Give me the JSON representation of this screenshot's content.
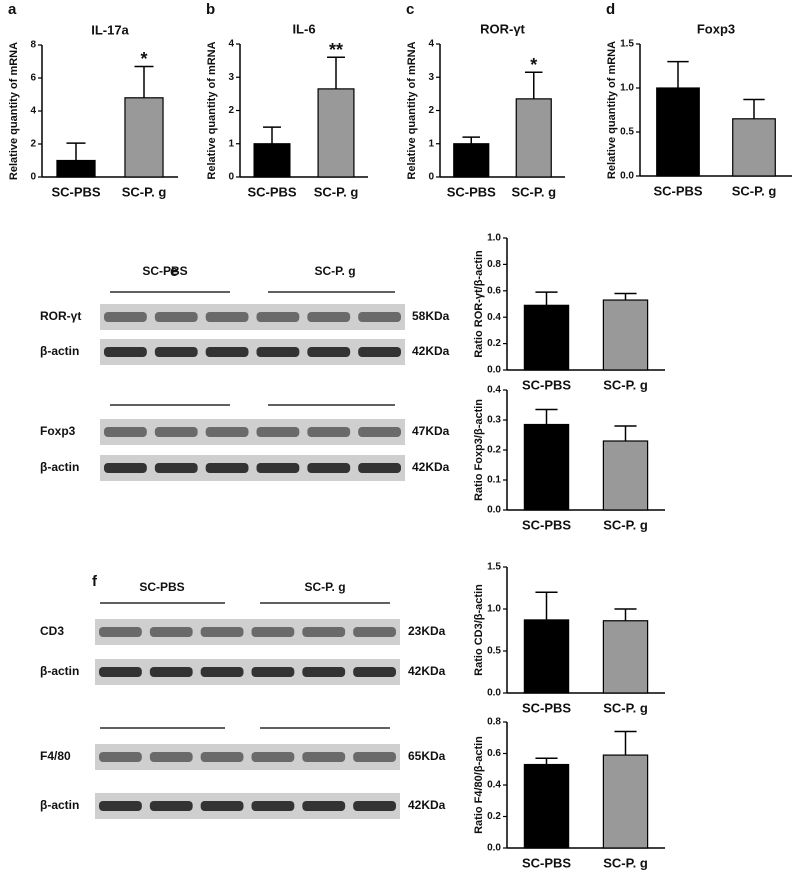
{
  "chart_data": [
    {
      "type": "bar",
      "panel": "a",
      "title": "IL-17a",
      "ylabel": "Relative quantity of mRNA",
      "categories": [
        "SC-PBS",
        "SC-P. g"
      ],
      "values": [
        1.0,
        4.8
      ],
      "errors": [
        1.05,
        1.9
      ],
      "annotations": [
        null,
        "*"
      ],
      "colors": [
        "#000000",
        "#999999"
      ],
      "ylim": [
        0,
        8
      ],
      "yticks": [
        0,
        2,
        4,
        6,
        8
      ]
    },
    {
      "type": "bar",
      "panel": "b",
      "title": "IL-6",
      "ylabel": "Relative quantity of mRNA",
      "categories": [
        "SC-PBS",
        "SC-P. g"
      ],
      "values": [
        1.0,
        2.65
      ],
      "errors": [
        0.5,
        0.95
      ],
      "annotations": [
        null,
        "**"
      ],
      "colors": [
        "#000000",
        "#999999"
      ],
      "ylim": [
        0,
        4
      ],
      "yticks": [
        0,
        1,
        2,
        3,
        4
      ]
    },
    {
      "type": "bar",
      "panel": "c",
      "title": "ROR-γt",
      "ylabel": "Relative quantity of mRNA",
      "categories": [
        "SC-PBS",
        "SC-P. g"
      ],
      "values": [
        1.0,
        2.35
      ],
      "errors": [
        0.2,
        0.8
      ],
      "annotations": [
        null,
        "*"
      ],
      "colors": [
        "#000000",
        "#999999"
      ],
      "ylim": [
        0,
        4
      ],
      "yticks": [
        0,
        1,
        2,
        3,
        4
      ]
    },
    {
      "type": "bar",
      "panel": "d",
      "title": "Foxp3",
      "ylabel": "Relative quantity of mRNA",
      "categories": [
        "SC-PBS",
        "SC-P. g"
      ],
      "values": [
        1.0,
        0.65
      ],
      "errors": [
        0.3,
        0.22
      ],
      "colors": [
        "#000000",
        "#999999"
      ],
      "ylim": [
        0,
        1.5
      ],
      "yticks": [
        {
          "value": 0,
          "label": "0.0"
        },
        0.5,
        {
          "value": 1,
          "label": "1.0"
        },
        1.5
      ]
    },
    {
      "type": "bar",
      "ylabel": "Ratio ROR-γt/β-actin",
      "categories": [
        "SC-PBS",
        "SC-P. g"
      ],
      "values": [
        0.49,
        0.53
      ],
      "errors": [
        0.1,
        0.05
      ],
      "colors": [
        "#000000",
        "#999999"
      ],
      "ylim": [
        0,
        1
      ],
      "yticks": [
        {
          "value": 0,
          "label": "0.0"
        },
        0.2,
        0.4,
        0.6,
        0.8,
        {
          "value": 1,
          "label": "1.0"
        }
      ]
    },
    {
      "type": "bar",
      "ylabel": "Ratio Foxp3/β-actin",
      "categories": [
        "SC-PBS",
        "SC-P. g"
      ],
      "values": [
        0.285,
        0.23
      ],
      "errors": [
        0.05,
        0.05
      ],
      "colors": [
        "#000000",
        "#999999"
      ],
      "ylim": [
        0,
        0.4
      ],
      "yticks": [
        {
          "value": 0,
          "label": "0.0"
        },
        0.1,
        0.2,
        0.3,
        0.4
      ]
    },
    {
      "type": "bar",
      "ylabel": "Ratio CD3/β-actin",
      "categories": [
        "SC-PBS",
        "SC-P. g"
      ],
      "values": [
        0.87,
        0.86
      ],
      "errors": [
        0.33,
        0.14
      ],
      "colors": [
        "#000000",
        "#999999"
      ],
      "ylim": [
        0,
        1.5
      ],
      "yticks": [
        {
          "value": 0,
          "label": "0.0"
        },
        0.5,
        {
          "value": 1,
          "label": "1.0"
        },
        1.5
      ]
    },
    {
      "type": "bar",
      "ylabel": "Ratio F4/80/β-actin",
      "categories": [
        "SC-PBS",
        "SC-P. g"
      ],
      "values": [
        0.53,
        0.59
      ],
      "errors": [
        0.04,
        0.15
      ],
      "colors": [
        "#000000",
        "#999999"
      ],
      "ylim": [
        0,
        0.8
      ],
      "yticks": [
        {
          "value": 0,
          "label": "0.0"
        },
        0.2,
        0.4,
        0.6,
        0.8
      ]
    }
  ],
  "blots": [
    {
      "panel": "e",
      "groups": [
        "SC-PBS",
        "SC-P. g"
      ],
      "rows": [
        {
          "label": "ROR-γt",
          "size": "58KDa"
        },
        {
          "label": "β-actin",
          "size": "42KDa"
        },
        {
          "label": "Foxp3",
          "size": "47KDa"
        },
        {
          "label": "β-actin",
          "size": "42KDa"
        }
      ]
    },
    {
      "panel": "f",
      "groups": [
        "SC-PBS",
        "SC-P. g"
      ],
      "rows": [
        {
          "label": "CD3",
          "size": "23KDa"
        },
        {
          "label": "β-actin",
          "size": "42KDa"
        },
        {
          "label": "F4/80",
          "size": "65KDa"
        },
        {
          "label": "β-actin",
          "size": "42KDa"
        }
      ]
    }
  ]
}
